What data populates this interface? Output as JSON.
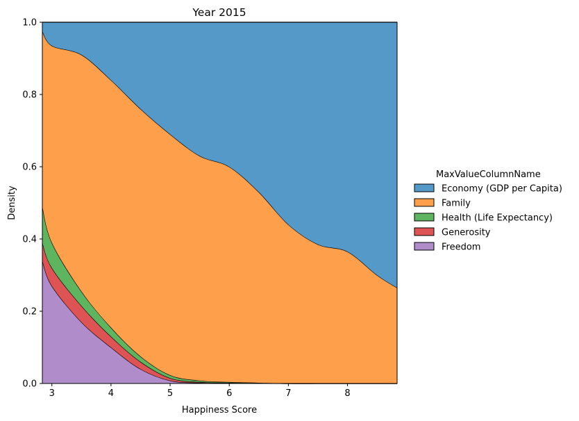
{
  "chart_data": {
    "type": "area",
    "stacked": "fill",
    "title": "Year 2015",
    "xlabel": "Happiness Score",
    "ylabel": "Density",
    "xlim": [
      2.839,
      8.839
    ],
    "ylim": [
      0,
      1
    ],
    "xticks": [
      3,
      4,
      5,
      6,
      7,
      8
    ],
    "yticks": [
      0.0,
      0.2,
      0.4,
      0.6,
      0.8,
      1.0
    ],
    "ytick_labels": [
      "0.0",
      "0.2",
      "0.4",
      "0.6",
      "0.8",
      "1.0"
    ],
    "x": [
      2.839,
      3.0,
      3.5,
      4.0,
      4.5,
      5.0,
      5.5,
      6.0,
      6.5,
      7.0,
      7.5,
      8.0,
      8.5,
      8.839
    ],
    "legend": {
      "title": "MaxValueColumnName",
      "placement": "outside-right",
      "entries": [
        "Economy (GDP per Capita)",
        "Family",
        "Health (Life Expectancy)",
        "Generosity",
        "Freedom"
      ]
    },
    "series": [
      {
        "name": "Freedom",
        "color": "#b08ccb",
        "values": [
          0.34,
          0.27,
          0.17,
          0.1,
          0.04,
          0.008,
          0.002,
          0.001,
          0.0005,
          0.0,
          0.0,
          0.0,
          0.0,
          0.0
        ]
      },
      {
        "name": "Generosity",
        "color": "#de5455",
        "values": [
          0.05,
          0.05,
          0.045,
          0.03,
          0.02,
          0.007,
          0.002,
          0.001,
          0.0005,
          0.0,
          0.0,
          0.0,
          0.0,
          0.0
        ]
      },
      {
        "name": "Health (Life Expectancy)",
        "color": "#5fb45f",
        "values": [
          0.1,
          0.07,
          0.04,
          0.025,
          0.015,
          0.008,
          0.004,
          0.002,
          0.001,
          0.0,
          0.0,
          0.0,
          0.0,
          0.0
        ]
      },
      {
        "name": "Family",
        "color": "#fe9f4b",
        "values": [
          0.485,
          0.545,
          0.655,
          0.685,
          0.685,
          0.667,
          0.622,
          0.596,
          0.528,
          0.44,
          0.385,
          0.365,
          0.3,
          0.265
        ]
      },
      {
        "name": "Economy (GDP per Capita)",
        "color": "#5599c8",
        "values": [
          0.025,
          0.065,
          0.09,
          0.16,
          0.24,
          0.31,
          0.37,
          0.4,
          0.47,
          0.56,
          0.615,
          0.635,
          0.7,
          0.735
        ]
      }
    ]
  }
}
